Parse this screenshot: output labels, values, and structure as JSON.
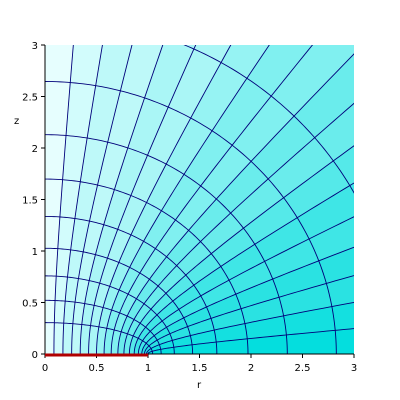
{
  "chart_data": {
    "type": "contour",
    "xlabel": "r",
    "ylabel": "z",
    "xlim": [
      0,
      3
    ],
    "ylim": [
      0,
      3
    ],
    "x_ticks": [
      "0",
      "0.5",
      "1",
      "1.5",
      "2",
      "2.5",
      "3"
    ],
    "y_ticks": [
      "0",
      "0.5",
      "1",
      "1.5",
      "2",
      "2.5",
      "3"
    ],
    "x_tick_values": [
      0,
      0.5,
      1,
      1.5,
      2,
      2.5,
      3
    ],
    "y_tick_values": [
      0,
      0.5,
      1,
      1.5,
      2,
      2.5,
      3
    ],
    "grid": false,
    "disk_segment": {
      "x": [
        0,
        1
      ],
      "y": [
        0,
        0
      ],
      "color": "#b00000"
    },
    "coordinate_system": "oblate spheroidal (focal radius 1)",
    "mu_levels": [
      0.3,
      0.5,
      0.7,
      0.9,
      1.1,
      1.3,
      1.5,
      1.7,
      1.9
    ],
    "nu_levels": [
      0.087,
      0.175,
      0.262,
      0.349,
      0.436,
      0.524,
      0.611,
      0.698,
      0.785,
      0.873,
      0.96,
      1.047,
      1.134,
      1.222,
      1.309,
      1.396,
      1.484
    ],
    "fill_colors": [
      "#e6fefe",
      "#d2fcfc",
      "#bef9f9",
      "#aaf6f6",
      "#96f3f3",
      "#80f0f0",
      "#6aecec",
      "#55e9e9",
      "#3fe6e6",
      "#2ae2e2",
      "#14e0e0",
      "#04dede"
    ],
    "contour_color": "#00007a",
    "background_color": "#ffffff"
  }
}
